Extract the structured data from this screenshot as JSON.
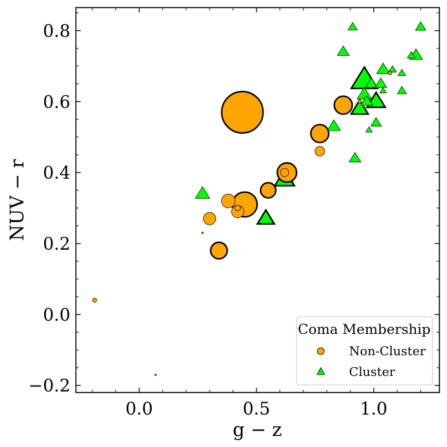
{
  "chart_data": {
    "type": "scatter",
    "xlabel": "g − z",
    "ylabel": "NUV − r",
    "xlim": [
      -0.27,
      1.28
    ],
    "ylim": [
      -0.22,
      0.865
    ],
    "x_ticks": [
      {
        "value": 0.0,
        "label": "0.0"
      },
      {
        "value": 0.5,
        "label": "0.5"
      },
      {
        "value": 1.0,
        "label": "1.0"
      }
    ],
    "y_ticks": [
      {
        "value": -0.2,
        "label": "−0.2"
      },
      {
        "value": 0.0,
        "label": "0.0"
      },
      {
        "value": 0.2,
        "label": "0.2"
      },
      {
        "value": 0.4,
        "label": "0.4"
      },
      {
        "value": 0.6,
        "label": "0.6"
      },
      {
        "value": 0.8,
        "label": "0.8"
      }
    ],
    "legend": {
      "title": "Coma Membership",
      "position": "lower-right",
      "entries": [
        {
          "label": "Non-Cluster",
          "marker": "circle",
          "color": "#ffa500"
        },
        {
          "label": "Cluster",
          "marker": "triangle",
          "color": "#00ff00"
        }
      ]
    },
    "marker_size_encoding": "variable (third quantity, not labeled)",
    "series": [
      {
        "name": "Non-Cluster",
        "marker": "circle",
        "color": "#ffa500",
        "points": [
          {
            "x": -0.19,
            "y": 0.04,
            "size": 3,
            "bold": false
          },
          {
            "x": 0.07,
            "y": -0.17,
            "size": 1.2,
            "bold": false
          },
          {
            "x": 0.27,
            "y": 0.23,
            "size": 1.2,
            "bold": false
          },
          {
            "x": 0.3,
            "y": 0.27,
            "size": 9,
            "bold": false
          },
          {
            "x": 0.34,
            "y": 0.18,
            "size": 12,
            "bold": true
          },
          {
            "x": 0.38,
            "y": 0.32,
            "size": 10,
            "bold": false
          },
          {
            "x": 0.42,
            "y": 0.29,
            "size": 9,
            "bold": false
          },
          {
            "x": 0.42,
            "y": 0.3,
            "size": 4,
            "bold": false
          },
          {
            "x": 0.45,
            "y": 0.31,
            "size": 18,
            "bold": true
          },
          {
            "x": 0.44,
            "y": 0.57,
            "size": 30,
            "bold": true
          },
          {
            "x": 0.55,
            "y": 0.35,
            "size": 11,
            "bold": true
          },
          {
            "x": 0.63,
            "y": 0.4,
            "size": 14,
            "bold": true
          },
          {
            "x": 0.62,
            "y": 0.4,
            "size": 6,
            "bold": false
          },
          {
            "x": 0.77,
            "y": 0.51,
            "size": 13,
            "bold": true
          },
          {
            "x": 0.77,
            "y": 0.46,
            "size": 7,
            "bold": false
          },
          {
            "x": 0.87,
            "y": 0.59,
            "size": 13,
            "bold": true
          },
          {
            "x": 0.94,
            "y": 0.6,
            "size": 2.5,
            "bold": false
          },
          {
            "x": 1.07,
            "y": 0.68,
            "size": 2.5,
            "bold": false
          }
        ]
      },
      {
        "name": "Cluster",
        "marker": "triangle",
        "color": "#00ff00",
        "points": [
          {
            "x": 0.27,
            "y": 0.34,
            "size": 11,
            "bold": false
          },
          {
            "x": 0.54,
            "y": 0.27,
            "size": 13,
            "bold": true
          },
          {
            "x": 0.62,
            "y": 0.38,
            "size": 15,
            "bold": true
          },
          {
            "x": 0.83,
            "y": 0.53,
            "size": 10,
            "bold": false
          },
          {
            "x": 0.87,
            "y": 0.74,
            "size": 9,
            "bold": false
          },
          {
            "x": 0.91,
            "y": 0.81,
            "size": 7,
            "bold": false
          },
          {
            "x": 0.92,
            "y": 0.44,
            "size": 9,
            "bold": false
          },
          {
            "x": 0.94,
            "y": 0.58,
            "size": 13,
            "bold": true
          },
          {
            "x": 0.96,
            "y": 0.66,
            "size": 20,
            "bold": true
          },
          {
            "x": 0.96,
            "y": 0.62,
            "size": 11,
            "bold": false
          },
          {
            "x": 0.97,
            "y": 0.6,
            "size": 9,
            "bold": false
          },
          {
            "x": 0.98,
            "y": 0.52,
            "size": 5,
            "bold": false
          },
          {
            "x": 0.99,
            "y": 0.65,
            "size": 9,
            "bold": false
          },
          {
            "x": 1.01,
            "y": 0.6,
            "size": 14,
            "bold": true
          },
          {
            "x": 1.01,
            "y": 0.54,
            "size": 8,
            "bold": false
          },
          {
            "x": 1.03,
            "y": 0.65,
            "size": 9,
            "bold": false
          },
          {
            "x": 1.04,
            "y": 0.69,
            "size": 10,
            "bold": false
          },
          {
            "x": 1.04,
            "y": 0.63,
            "size": 5,
            "bold": false
          },
          {
            "x": 1.08,
            "y": 0.69,
            "size": 6,
            "bold": false
          },
          {
            "x": 1.12,
            "y": 0.68,
            "size": 6,
            "bold": false
          },
          {
            "x": 1.12,
            "y": 0.63,
            "size": 7,
            "bold": false
          },
          {
            "x": 1.16,
            "y": 0.73,
            "size": 6,
            "bold": false
          },
          {
            "x": 1.18,
            "y": 0.73,
            "size": 10,
            "bold": false
          },
          {
            "x": 1.2,
            "y": 0.81,
            "size": 8,
            "bold": false
          }
        ]
      }
    ]
  }
}
